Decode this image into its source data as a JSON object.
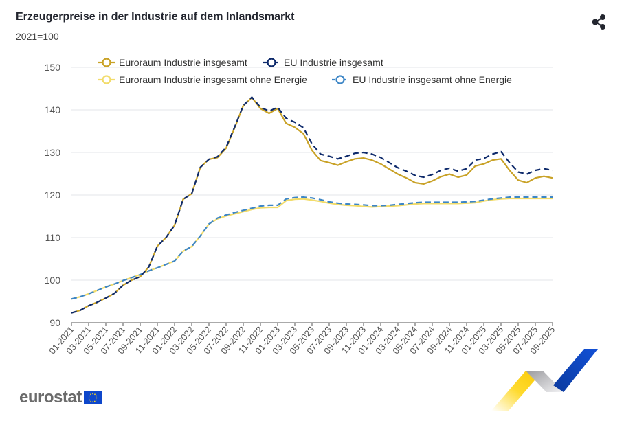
{
  "header": {
    "title": "Erzeugerpreise in der Industrie auf dem Inlandsmarkt",
    "subtitle": "2021=100",
    "share_icon": "share-icon"
  },
  "footer": {
    "logo_text": "eurostat",
    "flag_icon": "eu-flag-icon"
  },
  "chart_data": {
    "type": "line",
    "title": "Erzeugerpreise in der Industrie auf dem Inlandsmarkt",
    "subtitle": "2021=100",
    "xlabel": "",
    "ylabel": "",
    "ylim": [
      90,
      150
    ],
    "yticks": [
      "90",
      "100",
      "110",
      "120",
      "130",
      "140",
      "150"
    ],
    "grid": true,
    "legend_position": "top",
    "x": [
      "01-2021",
      "02-2021",
      "03-2021",
      "04-2021",
      "05-2021",
      "06-2021",
      "07-2021",
      "08-2021",
      "09-2021",
      "10-2021",
      "11-2021",
      "12-2021",
      "01-2022",
      "02-2022",
      "03-2022",
      "04-2022",
      "05-2022",
      "06-2022",
      "07-2022",
      "08-2022",
      "09-2022",
      "10-2022",
      "11-2022",
      "12-2022",
      "01-2023",
      "02-2023",
      "03-2023",
      "04-2023",
      "05-2023",
      "06-2023",
      "07-2023",
      "08-2023",
      "09-2023",
      "10-2023",
      "11-2023",
      "12-2023",
      "01-2024",
      "02-2024",
      "03-2024",
      "04-2024",
      "05-2024",
      "06-2024",
      "07-2024",
      "08-2024",
      "09-2024",
      "10-2024",
      "11-2024",
      "12-2024",
      "01-2025",
      "02-2025",
      "03-2025",
      "04-2025",
      "05-2025",
      "06-2025",
      "07-2025",
      "08-2025",
      "09-2025"
    ],
    "xtick_labels": [
      "01-2021",
      "03-2021",
      "05-2021",
      "07-2021",
      "09-2021",
      "11-2021",
      "01-2022",
      "03-2022",
      "05-2022",
      "07-2022",
      "09-2022",
      "11-2022",
      "01-2023",
      "03-2023",
      "05-2023",
      "07-2023",
      "09-2023",
      "11-2023",
      "01-2024",
      "03-2024",
      "05-2024",
      "07-2024",
      "09-2024",
      "11-2024",
      "01-2025",
      "03-2025",
      "05-2025",
      "07-2025",
      "09-2025"
    ],
    "series": [
      {
        "name": "Euroraum Industrie insgesamt",
        "color": "#c9a227",
        "dashed": false,
        "values": [
          92.3,
          92.9,
          94.0,
          94.8,
          95.8,
          96.9,
          98.8,
          100.0,
          100.8,
          103.1,
          108.0,
          110.0,
          112.9,
          119.0,
          120.3,
          126.5,
          128.4,
          128.8,
          131.0,
          135.8,
          141.0,
          142.9,
          140.3,
          139.2,
          140.3,
          136.8,
          135.9,
          134.4,
          130.5,
          128.1,
          127.6,
          127.0,
          127.8,
          128.5,
          128.7,
          128.2,
          127.3,
          126.1,
          124.9,
          124.0,
          122.9,
          122.6,
          123.3,
          124.3,
          124.9,
          124.2,
          124.7,
          126.8,
          127.3,
          128.2,
          128.5,
          125.8,
          123.5,
          122.9,
          124.0,
          124.4,
          124.0
        ]
      },
      {
        "name": "EU Industrie insgesamt",
        "color": "#0e2a6b",
        "dashed": true,
        "values": [
          92.3,
          92.9,
          94.0,
          94.8,
          95.8,
          96.9,
          98.8,
          100.0,
          100.8,
          103.1,
          108.0,
          110.0,
          112.9,
          119.0,
          120.3,
          126.5,
          128.4,
          129.0,
          131.2,
          136.0,
          141.0,
          143.0,
          140.6,
          139.7,
          140.6,
          138.0,
          137.1,
          135.8,
          132.0,
          129.6,
          129.1,
          128.5,
          129.1,
          129.8,
          130.0,
          129.6,
          128.8,
          127.6,
          126.4,
          125.6,
          124.6,
          124.2,
          124.8,
          125.8,
          126.3,
          125.6,
          126.2,
          128.2,
          128.6,
          129.6,
          130.2,
          127.6,
          125.4,
          124.9,
          125.8,
          126.2,
          125.8
        ]
      },
      {
        "name": "Euroraum Industrie insgesamt ohne Energie",
        "color": "#f2dc6b",
        "dashed": false,
        "values": [
          95.6,
          96.1,
          96.8,
          97.6,
          98.4,
          99.1,
          99.9,
          100.6,
          101.3,
          102.2,
          102.9,
          103.7,
          104.5,
          106.8,
          107.9,
          110.4,
          113.2,
          114.4,
          115.1,
          115.6,
          116.1,
          116.6,
          117.0,
          117.1,
          117.1,
          118.7,
          119.0,
          119.1,
          118.8,
          118.5,
          118.1,
          117.8,
          117.6,
          117.5,
          117.3,
          117.2,
          117.3,
          117.4,
          117.5,
          117.7,
          117.9,
          118.0,
          118.0,
          118.0,
          118.0,
          118.0,
          118.1,
          118.2,
          118.6,
          118.9,
          119.1,
          119.2,
          119.2,
          119.2,
          119.2,
          119.2,
          119.2
        ]
      },
      {
        "name": "EU Industrie insgesamt ohne Energie",
        "color": "#3d86c6",
        "dashed": true,
        "values": [
          95.6,
          96.1,
          96.8,
          97.6,
          98.4,
          99.1,
          99.9,
          100.6,
          101.3,
          102.2,
          102.9,
          103.7,
          104.5,
          106.8,
          107.9,
          110.4,
          113.2,
          114.6,
          115.3,
          115.9,
          116.4,
          116.9,
          117.4,
          117.6,
          117.6,
          119.1,
          119.4,
          119.5,
          119.3,
          118.9,
          118.4,
          118.1,
          117.9,
          117.8,
          117.7,
          117.5,
          117.5,
          117.6,
          117.8,
          118.0,
          118.2,
          118.3,
          118.3,
          118.3,
          118.3,
          118.3,
          118.4,
          118.5,
          118.8,
          119.1,
          119.3,
          119.5,
          119.5,
          119.5,
          119.5,
          119.5,
          119.5
        ]
      }
    ]
  }
}
